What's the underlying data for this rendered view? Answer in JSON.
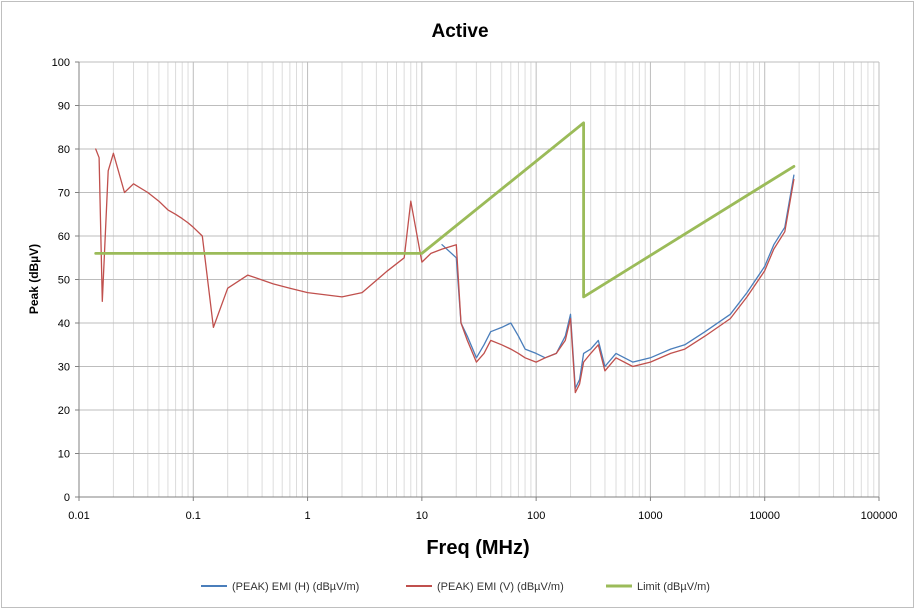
{
  "chart_data": {
    "type": "line",
    "title": "Active",
    "xlabel": "Freq (MHz)",
    "ylabel": "Peak (dBµV)",
    "x_scale": "log",
    "xlim": [
      0.01,
      100000
    ],
    "ylim": [
      0,
      100
    ],
    "x_ticks": [
      0.01,
      0.1,
      1,
      10,
      100,
      1000,
      10000,
      100000
    ],
    "x_tick_labels": [
      "0.01",
      "0.1",
      "1",
      "10",
      "100",
      "1000",
      "10000",
      "100000"
    ],
    "y_ticks": [
      0,
      10,
      20,
      30,
      40,
      50,
      60,
      70,
      80,
      90,
      100
    ],
    "y_tick_labels": [
      "0",
      "10",
      "20",
      "30",
      "40",
      "50",
      "60",
      "70",
      "80",
      "90",
      "100"
    ],
    "grid": true,
    "legend_position": "bottom",
    "series": [
      {
        "name": "(PEAK) EMI (H) (dBµV/m)",
        "color": "#4a7ebb",
        "x": [
          15,
          20,
          22,
          25,
          30,
          35,
          40,
          50,
          60,
          70,
          80,
          100,
          120,
          150,
          180,
          200,
          220,
          240,
          260,
          300,
          350,
          400,
          500,
          700,
          1000,
          1500,
          2000,
          3000,
          5000,
          7000,
          10000,
          12000,
          15000,
          18000
        ],
        "y": [
          58,
          55,
          40,
          37,
          32,
          35,
          38,
          39,
          40,
          37,
          34,
          33,
          32,
          33,
          37,
          42,
          25,
          27,
          33,
          34,
          36,
          30,
          33,
          31,
          32,
          34,
          35,
          38,
          42,
          47,
          53,
          58,
          62,
          74
        ]
      },
      {
        "name": "(PEAK) EMI (V) (dBµV/m)",
        "color": "#c0504d",
        "x": [
          0.014,
          0.015,
          0.016,
          0.018,
          0.02,
          0.025,
          0.03,
          0.04,
          0.05,
          0.06,
          0.07,
          0.08,
          0.09,
          0.1,
          0.12,
          0.15,
          0.2,
          0.3,
          0.5,
          0.7,
          1,
          2,
          3,
          5,
          7,
          8,
          10,
          12,
          15,
          20,
          22,
          25,
          30,
          35,
          40,
          50,
          60,
          70,
          80,
          100,
          120,
          150,
          180,
          200,
          220,
          240,
          260,
          300,
          350,
          400,
          500,
          700,
          1000,
          1500,
          2000,
          3000,
          5000,
          7000,
          10000,
          12000,
          15000,
          18000
        ],
        "y": [
          80,
          78,
          45,
          75,
          79,
          70,
          72,
          70,
          68,
          66,
          65,
          64,
          63,
          62,
          60,
          39,
          48,
          51,
          49,
          48,
          47,
          46,
          47,
          52,
          55,
          68,
          54,
          56,
          57,
          58,
          40,
          36,
          31,
          33,
          36,
          35,
          34,
          33,
          32,
          31,
          32,
          33,
          36,
          41,
          24,
          26,
          31,
          33,
          35,
          29,
          32,
          30,
          31,
          33,
          34,
          37,
          41,
          46,
          52,
          57,
          61,
          73
        ]
      },
      {
        "name": "Limit (dBµV/m)",
        "color": "#9bbb59",
        "x": [
          0.014,
          10,
          260,
          260,
          18000
        ],
        "y": [
          56,
          56,
          86,
          46,
          76
        ]
      }
    ]
  }
}
